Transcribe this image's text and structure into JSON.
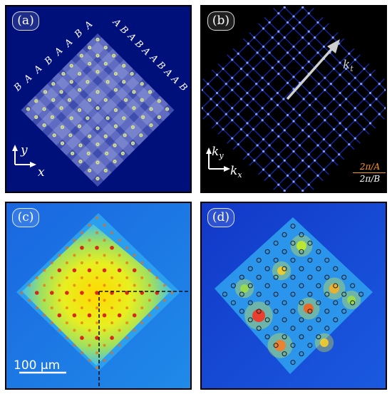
{
  "panels": {
    "a": {
      "label": "(a)",
      "left_sequence": [
        "B",
        "A",
        "A",
        "B",
        "A",
        "A",
        "B",
        "A"
      ],
      "right_sequence": [
        "A",
        "B",
        "A",
        "B",
        "A",
        "A",
        "B",
        "A",
        "A",
        "B"
      ],
      "axis_x": "x",
      "axis_y": "y"
    },
    "b": {
      "label": "(b)",
      "kt_base": "k",
      "kt_sub": "t",
      "kx_base": "k",
      "kx_sub": "x",
      "ky_base": "k",
      "ky_sub": "y",
      "ratio_num": "2π/A",
      "ratio_den": "2π/B"
    },
    "c": {
      "label": "(c)",
      "scale_bar": "100 µm"
    },
    "d": {
      "label": "(d)"
    }
  },
  "colors": {
    "panel_a_bg": "#00107a",
    "panel_b_bg": "#000000",
    "ratio_accent": "#ff9a1a",
    "lattice_site": "#f0e070"
  }
}
